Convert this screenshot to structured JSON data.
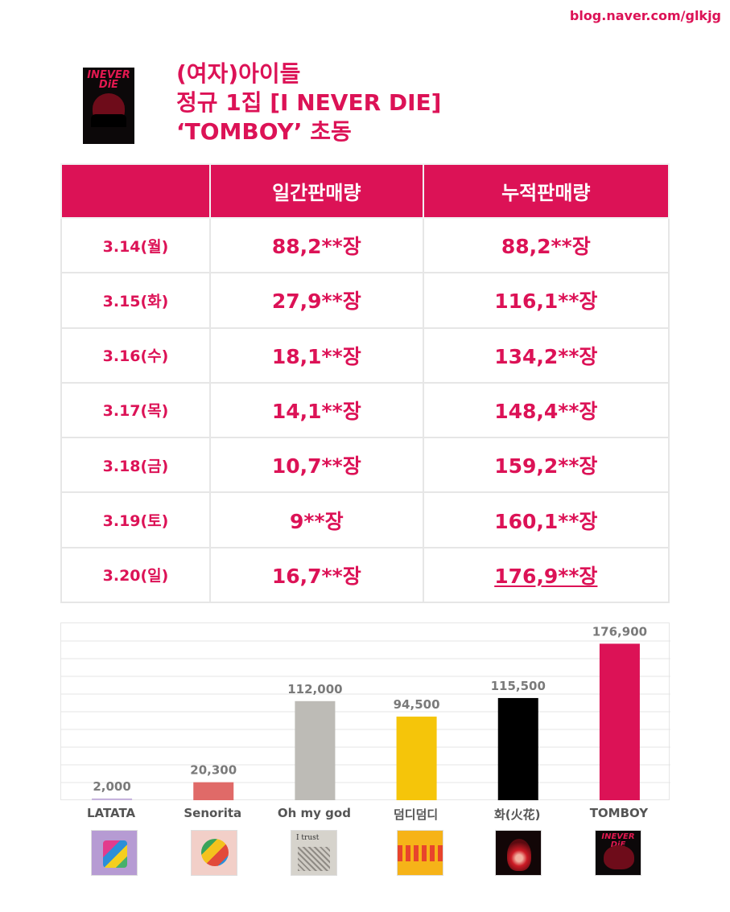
{
  "source": "blog.naver.com/glkjg",
  "title_lines": [
    "(여자)아이들",
    "정규 1집 [I NEVER DIE]",
    "‘TOMBOY’ 초동"
  ],
  "album_cover_text": [
    "INEVER",
    "DiE"
  ],
  "table": {
    "headers": [
      "",
      "일간판매량",
      "누적판매량"
    ],
    "rows": [
      {
        "date": "3.14(월)",
        "daily": "88,2**장",
        "cumulative": "88,2**장"
      },
      {
        "date": "3.15(화)",
        "daily": "27,9**장",
        "cumulative": "116,1**장"
      },
      {
        "date": "3.16(수)",
        "daily": "18,1**장",
        "cumulative": "134,2**장"
      },
      {
        "date": "3.17(목)",
        "daily": "14,1**장",
        "cumulative": "148,4**장"
      },
      {
        "date": "3.18(금)",
        "daily": "10,7**장",
        "cumulative": "159,2**장"
      },
      {
        "date": "3.19(토)",
        "daily": "9**장",
        "cumulative": "160,1**장"
      },
      {
        "date": "3.20(일)",
        "daily": "16,7**장",
        "cumulative": "176,9**장"
      }
    ]
  },
  "chart_data": {
    "type": "bar",
    "categories": [
      "LATATA",
      "Senorita",
      "Oh my god",
      "덤디덤디",
      "화(火花)",
      "TOMBOY"
    ],
    "values": [
      2000,
      20300,
      112000,
      94500,
      115500,
      176900
    ],
    "value_labels": [
      "2,000",
      "20,300",
      "112,000",
      "94,500",
      "115,500",
      "176,900"
    ],
    "colors": [
      "#c6b3dd",
      "#e06a68",
      "#bdbbb6",
      "#f5c50a",
      "#000000",
      "#dc1256"
    ],
    "ylim": [
      0,
      200000
    ],
    "grid": true,
    "title": "",
    "xlabel": "",
    "ylabel": ""
  },
  "covers": {
    "ohmygod_text": "I trust"
  },
  "colors": {
    "accent": "#dc1256"
  }
}
